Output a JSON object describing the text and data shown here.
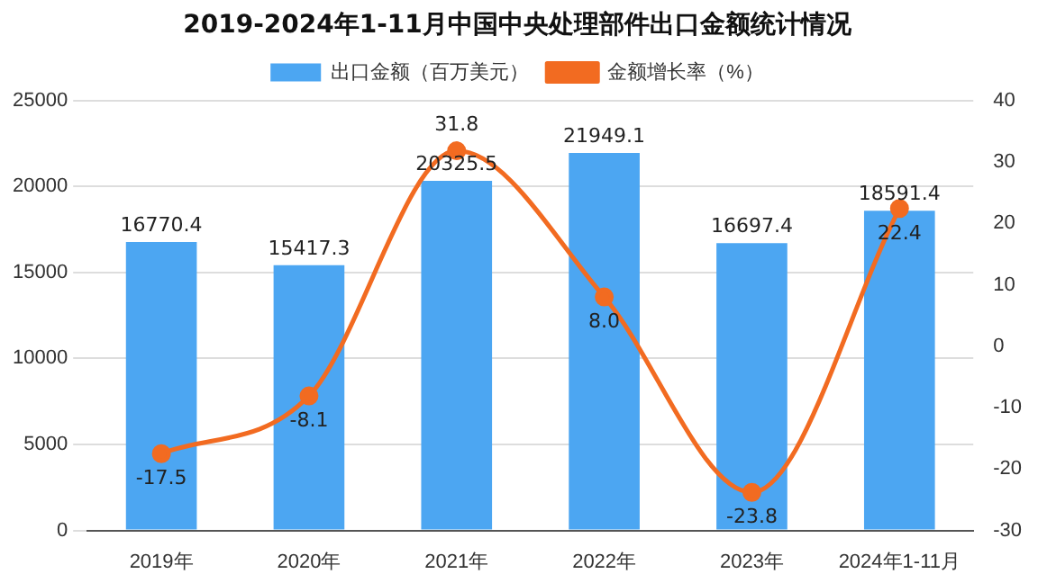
{
  "chart_data": {
    "type": "bar",
    "title": "2019-2024年1-11月中国中央处理部件出口金额统计情况",
    "categories": [
      "2019年",
      "2020年",
      "2021年",
      "2022年",
      "2023年",
      "2024年1-11月"
    ],
    "series": [
      {
        "name": "出口金额（百万美元）",
        "color": "#4ca6f2",
        "values": [
          16770.4,
          15417.3,
          20325.5,
          21949.1,
          16697.4,
          18591.4
        ],
        "value_labels": [
          "16770.4",
          "15417.3",
          "20325.5",
          "21949.1",
          "16697.4",
          "18591.4"
        ]
      },
      {
        "name": "金额增长率（%）",
        "type": "line",
        "axis": "y2",
        "color": "#f26b21",
        "values": [
          -17.5,
          -8.1,
          31.8,
          8.0,
          -23.8,
          22.4
        ],
        "value_labels": [
          "-17.5",
          "-8.1",
          "31.8",
          "8.0",
          "-23.8",
          "22.4"
        ]
      }
    ],
    "ylim": [
      0,
      25000
    ],
    "yticks": [
      0,
      5000,
      10000,
      15000,
      20000,
      25000
    ],
    "y2lim": [
      -30,
      40
    ],
    "y2ticks": [
      -30,
      -20,
      -10,
      0,
      10,
      20,
      30,
      40
    ],
    "grid": "y",
    "legend": "top",
    "marker": "circle",
    "line_style": "solid"
  }
}
